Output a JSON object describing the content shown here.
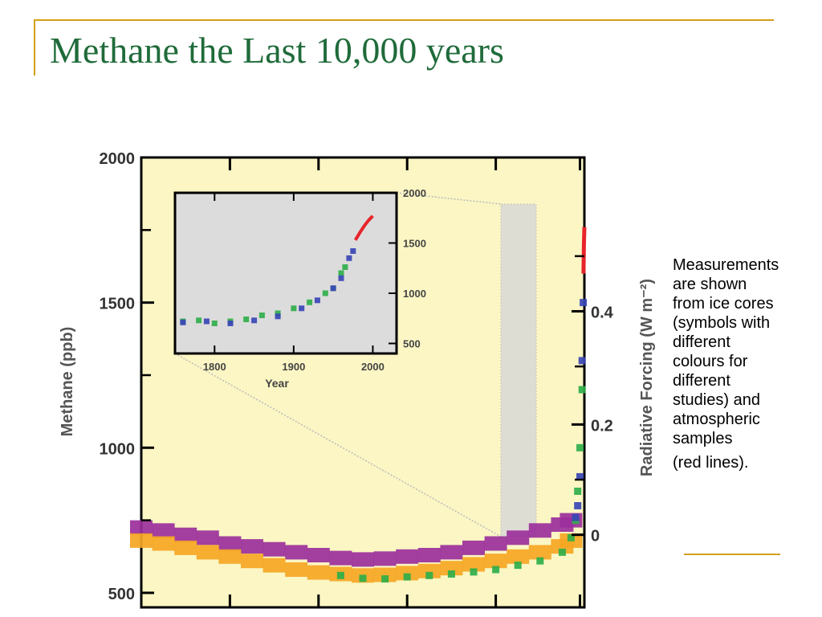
{
  "slide": {
    "title": "Methane the Last 10,000 years"
  },
  "caption": {
    "lines": [
      "Measurements",
      "are shown",
      "from ice cores",
      "(symbols with",
      "different",
      "colours for",
      "different",
      "studies) and",
      "atmospheric",
      "samples",
      "(red lines)."
    ]
  },
  "chart_data": [
    {
      "type": "scatter",
      "title": "",
      "xlabel": "",
      "ylabel": "Methane (ppb)",
      "y2label": "Radiative Forcing (W m⁻²)",
      "xlim": [
        -8000,
        2000
      ],
      "ylim": [
        450,
        2000
      ],
      "y_ticks": [
        500,
        1000,
        1500,
        2000
      ],
      "y2_ticks": [
        {
          "label": "0",
          "at_methane_ppb": 700
        },
        {
          "label": "0.2",
          "at_methane_ppb": 1080
        },
        {
          "label": "0.4",
          "at_methane_ppb": 1470
        }
      ],
      "colors": {
        "background": "#fbf6c4",
        "purple": "#9b2f9b",
        "orange": "#f5a623",
        "green": "#2fae4a",
        "blue": "#3a45b5",
        "red": "#e8242a"
      },
      "series": [
        {
          "color": "purple",
          "x": [
            -8000,
            -7500,
            -7000,
            -6500,
            -6000,
            -5500,
            -5000,
            -4500,
            -4000,
            -3500,
            -3000,
            -2500,
            -2000,
            -1500,
            -1000,
            -500,
            0,
            500,
            1000,
            1500,
            1700
          ],
          "y": [
            725,
            715,
            700,
            690,
            670,
            660,
            650,
            640,
            630,
            620,
            615,
            618,
            625,
            630,
            640,
            655,
            670,
            690,
            715,
            735,
            750
          ]
        },
        {
          "color": "orange",
          "x": [
            -8000,
            -7500,
            -7000,
            -6500,
            -6000,
            -5500,
            -5000,
            -4500,
            -4000,
            -3500,
            -3000,
            -2500,
            -2000,
            -1500,
            -1000,
            -500,
            0,
            500,
            1000,
            1500,
            1700
          ],
          "y": [
            680,
            670,
            655,
            640,
            625,
            610,
            595,
            580,
            570,
            565,
            560,
            562,
            568,
            575,
            585,
            598,
            610,
            625,
            640,
            660,
            680
          ]
        },
        {
          "color": "green",
          "x": [
            -3500,
            -3000,
            -2500,
            -2000,
            -1500,
            -1000,
            -500,
            0,
            500,
            1000,
            1500,
            1700,
            1800,
            1850,
            1900,
            1950
          ],
          "y": [
            560,
            550,
            548,
            555,
            560,
            565,
            572,
            580,
            595,
            610,
            640,
            690,
            750,
            850,
            1000,
            1200
          ]
        },
        {
          "color": "blue",
          "x": [
            1800,
            1850,
            1900,
            1950,
            1975
          ],
          "y": [
            760,
            800,
            900,
            1300,
            1500
          ]
        },
        {
          "color": "red",
          "x": [
            1980,
            1990,
            2000
          ],
          "y": [
            1600,
            1700,
            1760
          ]
        }
      ]
    },
    {
      "type": "scatter",
      "title": "",
      "xlabel": "Year",
      "ylabel": "",
      "xlim": [
        1750,
        2030
      ],
      "ylim": [
        400,
        2000
      ],
      "x_ticks": [
        1800,
        1900,
        2000
      ],
      "y_ticks": [
        500,
        1000,
        1500,
        2000
      ],
      "series": [
        {
          "color": "green",
          "x": [
            1760,
            1780,
            1800,
            1820,
            1840,
            1860,
            1880,
            1900,
            1920,
            1940,
            1950,
            1960,
            1965
          ],
          "y": [
            720,
            730,
            700,
            720,
            740,
            780,
            800,
            850,
            910,
            1000,
            1050,
            1200,
            1260
          ]
        },
        {
          "color": "blue",
          "x": [
            1760,
            1790,
            1820,
            1850,
            1880,
            1910,
            1930,
            1950,
            1960,
            1970,
            1975
          ],
          "y": [
            710,
            720,
            700,
            730,
            770,
            850,
            930,
            1050,
            1150,
            1350,
            1420
          ]
        },
        {
          "color": "red",
          "x": [
            1978,
            1985,
            1990,
            1995,
            2000
          ],
          "y": [
            1530,
            1620,
            1680,
            1730,
            1770
          ]
        }
      ]
    }
  ]
}
